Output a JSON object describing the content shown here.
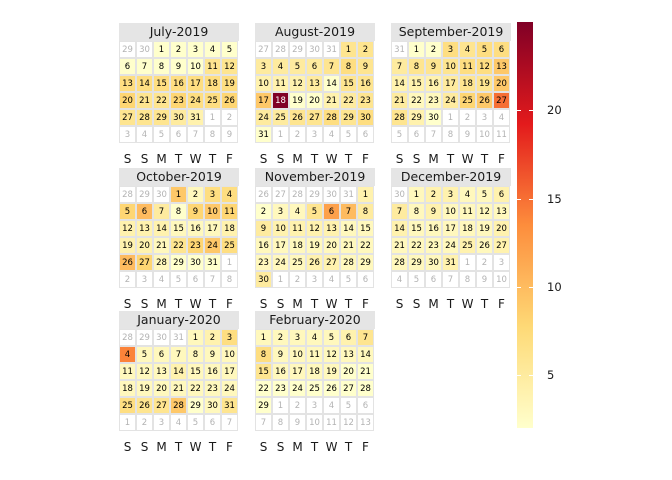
{
  "chart_data": {
    "type": "heatmap",
    "subtype": "calendar",
    "weekdays": [
      "S",
      "S",
      "M",
      "T",
      "W",
      "T",
      "F"
    ],
    "colorscale": {
      "min": 2,
      "max": 25,
      "colors": [
        "#ffffcc",
        "#fed976",
        "#fd8d3c",
        "#e31a1c",
        "#800026"
      ]
    },
    "legend": {
      "ticks": [
        5,
        10,
        15,
        20
      ],
      "placement": "right"
    },
    "months": [
      {
        "title": "July-2019",
        "year": 2019,
        "month": 7,
        "values": {
          "1": 2,
          "2": 2,
          "3": 2,
          "4": 2,
          "5": 2,
          "6": 2,
          "7": 2,
          "8": 2,
          "9": 2,
          "10": 2,
          "11": 6,
          "12": 6,
          "13": 7,
          "14": 7,
          "15": 7,
          "16": 7,
          "17": 7,
          "18": 7,
          "19": 7,
          "20": 8,
          "21": 6,
          "22": 6,
          "23": 8,
          "24": 7,
          "25": 7,
          "26": 8,
          "27": 6,
          "28": 6,
          "29": 6,
          "30": 5,
          "31": 4
        }
      },
      {
        "title": "August-2019",
        "year": 2019,
        "month": 8,
        "values": {
          "1": 6,
          "2": 6,
          "3": 5,
          "4": 5,
          "5": 5,
          "6": 5,
          "7": 6,
          "8": 7,
          "9": 6,
          "10": 4,
          "11": 4,
          "12": 4,
          "13": 5,
          "14": 2,
          "15": 6,
          "16": 6,
          "17": 9,
          "18": 25,
          "19": 2,
          "20": 2,
          "21": 4,
          "22": 5,
          "23": 6,
          "24": 5,
          "25": 5,
          "26": 6,
          "27": 6,
          "28": 7,
          "29": 6,
          "30": 7,
          "31": 2
        }
      },
      {
        "title": "September-2019",
        "year": 2019,
        "month": 9,
        "values": {
          "1": 2,
          "2": 2,
          "3": 7,
          "4": 6,
          "5": 7,
          "6": 7,
          "7": 5,
          "8": 6,
          "9": 6,
          "10": 6,
          "11": 7,
          "12": 7,
          "13": 9,
          "14": 4,
          "15": 4,
          "16": 4,
          "17": 5,
          "18": 6,
          "19": 6,
          "20": 9,
          "21": 5,
          "22": 3,
          "23": 3,
          "24": 5,
          "25": 8,
          "26": 9,
          "27": 15,
          "28": 6,
          "29": 4,
          "30": 2
        }
      },
      {
        "title": "October-2019",
        "year": 2019,
        "month": 10,
        "values": {
          "1": 9,
          "2": 3,
          "3": 7,
          "4": 7,
          "5": 8,
          "6": 10,
          "7": 5,
          "8": 2,
          "9": 8,
          "10": 9,
          "11": 8,
          "12": 4,
          "13": 4,
          "14": 4,
          "15": 3,
          "16": 3,
          "17": 3,
          "18": 4,
          "19": 4,
          "20": 4,
          "21": 3,
          "22": 6,
          "23": 8,
          "24": 9,
          "25": 7,
          "26": 10,
          "27": 8,
          "28": 3,
          "29": 2,
          "30": 2,
          "31": 2
        }
      },
      {
        "title": "November-2019",
        "year": 2019,
        "month": 11,
        "values": {
          "1": 4,
          "2": 2,
          "3": 3,
          "4": 3,
          "5": 6,
          "6": 12,
          "7": 10,
          "8": 5,
          "9": 5,
          "10": 4,
          "11": 4,
          "12": 4,
          "13": 4,
          "14": 3,
          "15": 3,
          "16": 3,
          "17": 3,
          "18": 3,
          "19": 3,
          "20": 3,
          "21": 3,
          "22": 3,
          "23": 3,
          "24": 3,
          "25": 3,
          "26": 4,
          "27": 4,
          "28": 3,
          "29": 3,
          "30": 5
        }
      },
      {
        "title": "December-2019",
        "year": 2019,
        "month": 12,
        "values": {
          "1": 3,
          "2": 4,
          "3": 4,
          "4": 3,
          "5": 3,
          "6": 4,
          "7": 5,
          "8": 3,
          "9": 4,
          "10": 3,
          "11": 3,
          "12": 3,
          "13": 3,
          "14": 4,
          "15": 3,
          "16": 3,
          "17": 3,
          "18": 3,
          "19": 3,
          "20": 4,
          "21": 3,
          "22": 3,
          "23": 3,
          "24": 3,
          "25": 4,
          "26": 3,
          "27": 4,
          "28": 3,
          "29": 3,
          "30": 3,
          "31": 4
        }
      },
      {
        "title": "January-2020",
        "year": 2020,
        "month": 1,
        "values": {
          "1": 3,
          "2": 4,
          "3": 7,
          "4": 14,
          "5": 3,
          "6": 3,
          "7": 3,
          "8": 3,
          "9": 3,
          "10": 3,
          "11": 3,
          "12": 3,
          "13": 3,
          "14": 4,
          "15": 3,
          "16": 3,
          "17": 3,
          "18": 3,
          "19": 3,
          "20": 3,
          "21": 3,
          "22": 3,
          "23": 3,
          "24": 3,
          "25": 7,
          "26": 6,
          "27": 6,
          "28": 9,
          "29": 2,
          "30": 3,
          "31": 6
        }
      },
      {
        "title": "February-2020",
        "year": 2020,
        "month": 2,
        "values": {
          "1": 3,
          "2": 3,
          "3": 3,
          "4": 3,
          "5": 3,
          "6": 4,
          "7": 6,
          "8": 7,
          "9": 3,
          "10": 3,
          "11": 3,
          "12": 3,
          "13": 3,
          "14": 3,
          "15": 6,
          "16": 3,
          "17": 3,
          "18": 3,
          "19": 3,
          "20": 2,
          "21": 2,
          "22": 2,
          "23": 2,
          "24": 2,
          "25": 2,
          "26": 2,
          "27": 2,
          "28": 2,
          "29": 2
        }
      }
    ]
  }
}
